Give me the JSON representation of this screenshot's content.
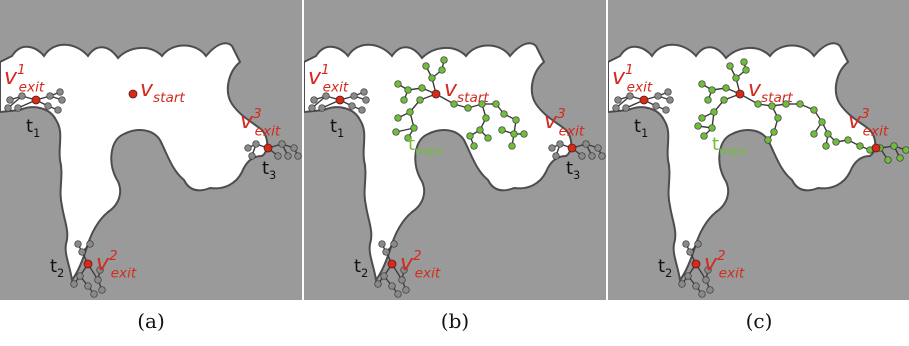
{
  "figure": {
    "panels": [
      {
        "caption": "(a)",
        "v_start": {
          "symbol": "v",
          "sub": "start"
        },
        "exits": [
          {
            "symbol": "v",
            "sup": "1",
            "sub": "exit"
          },
          {
            "symbol": "v",
            "sup": "2",
            "sub": "exit"
          },
          {
            "symbol": "v",
            "sup": "3",
            "sub": "exit"
          }
        ],
        "trees": [
          {
            "symbol": "t",
            "sub": "1"
          },
          {
            "symbol": "t",
            "sub": "2"
          },
          {
            "symbol": "t",
            "sub": "3"
          }
        ]
      },
      {
        "caption": "(b)",
        "v_start": {
          "symbol": "v",
          "sub": "start"
        },
        "exits": [
          {
            "symbol": "v",
            "sup": "1",
            "sub": "exit"
          },
          {
            "symbol": "v",
            "sup": "2",
            "sub": "exit"
          },
          {
            "symbol": "v",
            "sup": "3",
            "sub": "exit"
          }
        ],
        "trees": [
          {
            "symbol": "t",
            "sub": "1"
          },
          {
            "symbol": "t",
            "sub": "2"
          },
          {
            "symbol": "t",
            "sub": "3"
          }
        ],
        "main_tree": {
          "symbol": "t",
          "sub": "main"
        }
      },
      {
        "caption": "(c)",
        "v_start": {
          "symbol": "v",
          "sub": "start"
        },
        "exits": [
          {
            "symbol": "v",
            "sup": "1",
            "sub": "exit"
          },
          {
            "symbol": "v",
            "sup": "2",
            "sub": "exit"
          },
          {
            "symbol": "v",
            "sup": "3",
            "sub": "exit"
          }
        ],
        "trees": [
          {
            "symbol": "t",
            "sub": "1"
          },
          {
            "symbol": "t",
            "sub": "2"
          }
        ],
        "main_tree": {
          "symbol": "t",
          "sub": "main"
        }
      }
    ],
    "colors": {
      "obstacle": "#9a9a9a",
      "obstacle_edge": "#4d4d4d",
      "free_space": "#ffffff",
      "vertex_red": "#d42a1f",
      "tree_green": "#6fbe3a",
      "tree_gray": "#8a8a8a"
    }
  }
}
